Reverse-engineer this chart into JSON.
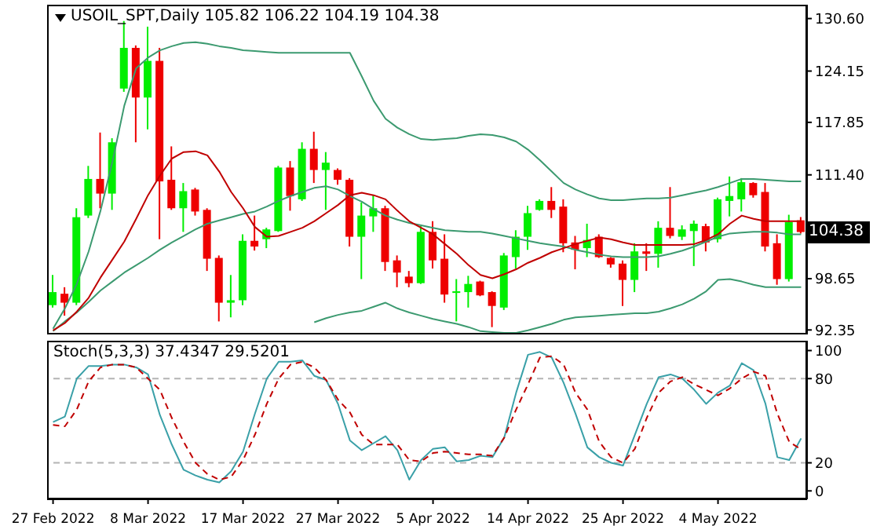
{
  "chart_data": [
    {
      "type": "candlestick",
      "title": "USOIL_SPT,Daily 105.82 106.22 104.19 104.38",
      "categories": [
        null,
        null,
        null,
        null,
        null,
        null,
        null,
        null,
        null,
        null,
        null,
        null,
        null,
        null,
        null,
        null,
        null,
        null,
        null,
        null,
        null,
        null,
        null,
        null,
        null,
        null,
        null,
        null,
        null,
        null,
        null,
        null,
        null,
        null,
        null,
        null,
        null,
        null,
        null,
        null,
        null,
        null,
        null,
        null,
        null,
        null,
        null,
        null,
        null,
        null,
        null,
        null,
        null,
        null,
        null,
        null,
        null,
        null,
        null,
        null,
        null,
        null,
        null,
        null
      ],
      "ohlc": [
        [
          95.4,
          99.1,
          95.1,
          97.0
        ],
        [
          96.8,
          97.6,
          94.1,
          95.7
        ],
        [
          95.7,
          107.3,
          95.4,
          106.2
        ],
        [
          106.4,
          112.5,
          106.1,
          110.9
        ],
        [
          110.9,
          116.6,
          107.3,
          109.1
        ],
        [
          109.1,
          115.9,
          107.1,
          115.4
        ],
        [
          122.0,
          130.3,
          121.6,
          127.0
        ],
        [
          127.0,
          127.3,
          115.4,
          120.9
        ],
        [
          120.9,
          129.6,
          117.0,
          125.4
        ],
        [
          125.4,
          127.0,
          103.5,
          110.6
        ],
        [
          110.8,
          114.9,
          107.1,
          107.3
        ],
        [
          107.3,
          110.4,
          104.4,
          109.4
        ],
        [
          109.6,
          109.8,
          106.4,
          106.9
        ],
        [
          107.1,
          107.3,
          99.6,
          101.1
        ],
        [
          101.2,
          101.5,
          93.4,
          95.7
        ],
        [
          95.7,
          99.1,
          93.9,
          96.0
        ],
        [
          96.0,
          104.1,
          95.4,
          103.3
        ],
        [
          103.3,
          106.4,
          102.1,
          102.6
        ],
        [
          103.5,
          104.9,
          102.4,
          104.7
        ],
        [
          104.5,
          112.5,
          104.4,
          112.3
        ],
        [
          112.3,
          113.1,
          107.0,
          108.8
        ],
        [
          108.4,
          115.4,
          108.2,
          114.6
        ],
        [
          114.6,
          116.7,
          110.4,
          112.0
        ],
        [
          112.0,
          114.2,
          107.1,
          112.9
        ],
        [
          112.0,
          112.2,
          110.2,
          110.8
        ],
        [
          110.8,
          111.0,
          102.6,
          103.8
        ],
        [
          103.8,
          108.0,
          98.6,
          106.4
        ],
        [
          106.3,
          108.9,
          104.4,
          107.3
        ],
        [
          107.3,
          107.6,
          99.6,
          100.7
        ],
        [
          100.9,
          101.5,
          97.6,
          99.4
        ],
        [
          98.9,
          99.6,
          97.6,
          98.1
        ],
        [
          98.1,
          105.1,
          98.0,
          104.4
        ],
        [
          104.4,
          105.7,
          99.9,
          100.9
        ],
        [
          101.1,
          104.1,
          95.7,
          96.7
        ],
        [
          96.9,
          98.6,
          93.4,
          97.1
        ],
        [
          97.0,
          99.0,
          95.1,
          98.0
        ],
        [
          98.3,
          98.4,
          96.5,
          96.6
        ],
        [
          97.0,
          97.1,
          92.7,
          95.3
        ],
        [
          95.1,
          101.8,
          94.8,
          101.5
        ],
        [
          101.3,
          104.6,
          99.9,
          103.8
        ],
        [
          103.8,
          107.6,
          102.2,
          106.7
        ],
        [
          107.1,
          108.4,
          107.0,
          108.2
        ],
        [
          108.2,
          109.9,
          106.1,
          107.1
        ],
        [
          107.5,
          108.4,
          101.9,
          103.0
        ],
        [
          103.1,
          103.9,
          99.8,
          102.2
        ],
        [
          102.4,
          105.4,
          101.3,
          103.4
        ],
        [
          103.8,
          104.1,
          101.2,
          101.3
        ],
        [
          101.2,
          101.3,
          100.0,
          100.4
        ],
        [
          100.5,
          100.9,
          95.3,
          98.5
        ],
        [
          98.5,
          103.0,
          97.0,
          102.0
        ],
        [
          102.0,
          103.0,
          99.6,
          101.7
        ],
        [
          101.7,
          105.7,
          100.0,
          104.9
        ],
        [
          104.9,
          109.9,
          103.6,
          103.9
        ],
        [
          103.8,
          105.2,
          103.4,
          104.7
        ],
        [
          104.5,
          105.8,
          100.2,
          105.4
        ],
        [
          105.1,
          105.4,
          102.0,
          103.1
        ],
        [
          103.5,
          108.6,
          103.1,
          108.4
        ],
        [
          108.2,
          111.2,
          106.3,
          108.8
        ],
        [
          108.4,
          111.0,
          106.9,
          110.5
        ],
        [
          110.4,
          110.5,
          108.6,
          108.9
        ],
        [
          109.3,
          110.4,
          102.0,
          102.6
        ],
        [
          103.0,
          104.1,
          97.9,
          98.6
        ],
        [
          98.6,
          106.5,
          98.3,
          105.6
        ],
        [
          105.82,
          106.22,
          104.19,
          104.38
        ]
      ],
      "colors": [
        "#00ee00",
        "#ee0000",
        "#00ee00",
        "#00ee00",
        "#ee0000",
        "#00ee00",
        "#00ee00",
        "#ee0000",
        "#00ee00",
        "#ee0000",
        "#ee0000",
        "#00ee00",
        "#ee0000",
        "#ee0000",
        "#ee0000",
        "#00ee00",
        "#00ee00",
        "#ee0000",
        "#00ee00",
        "#00ee00",
        "#ee0000",
        "#00ee00",
        "#ee0000",
        "#00ee00",
        "#ee0000",
        "#ee0000",
        "#00ee00",
        "#00ee00",
        "#ee0000",
        "#ee0000",
        "#ee0000",
        "#00ee00",
        "#ee0000",
        "#ee0000",
        "#00ee00",
        "#00ee00",
        "#ee0000",
        "#ee0000",
        "#00ee00",
        "#00ee00",
        "#00ee00",
        "#00ee00",
        "#ee0000",
        "#ee0000",
        "#ee0000",
        "#00ee00",
        "#ee0000",
        "#ee0000",
        "#ee0000",
        "#00ee00",
        "#ee0000",
        "#00ee00",
        "#ee0000",
        "#00ee00",
        "#00ee00",
        "#ee0000",
        "#00ee00",
        "#00ee00",
        "#00ee00",
        "#ee0000",
        "#ee0000",
        "#ee0000",
        "#00ee00",
        "#ee0000"
      ],
      "series": [
        {
          "type": "line",
          "color": "#3c9a70",
          "values": [
            92.5,
            95,
            98,
            102,
            107,
            113,
            119.9,
            124.5,
            125.8,
            126.7,
            127.2,
            127.6,
            127.7,
            127.5,
            127.2,
            127.0,
            126.7,
            126.6,
            126.5,
            126.4,
            126.4,
            126.4,
            126.4,
            126.4,
            126.4,
            126.4,
            123.5,
            120.5,
            118.3,
            117.2,
            116.4,
            115.8,
            115.7,
            115.8,
            115.9,
            116.2,
            116.4,
            116.3,
            116.0,
            115.5,
            114.5,
            113.2,
            111.8,
            110.4,
            109.6,
            109.0,
            108.5,
            108.3,
            108.3,
            108.4,
            108.5,
            108.5,
            108.6,
            108.9,
            109.2,
            109.5,
            109.9,
            110.4,
            110.9,
            110.9,
            110.8,
            110.7,
            110.6,
            110.6
          ]
        },
        {
          "type": "line",
          "color": "#3c9a70",
          "values": [
            92.2,
            93.4,
            94.5,
            95.8,
            97.2,
            98.3,
            99.4,
            100.3,
            101.2,
            102.2,
            103.1,
            103.9,
            104.7,
            105.4,
            105.8,
            106.2,
            106.6,
            106.9,
            107.5,
            108.2,
            108.8,
            109.3,
            109.8,
            110.0,
            109.6,
            108.8,
            108.1,
            107.2,
            106.4,
            105.9,
            105.5,
            105.2,
            104.9,
            104.6,
            104.5,
            104.4,
            104.4,
            104.2,
            103.9,
            103.6,
            103.3,
            103.0,
            102.8,
            102.6,
            102.2,
            101.9,
            101.6,
            101.4,
            101.3,
            101.3,
            101.3,
            101.4,
            101.7,
            102.1,
            102.6,
            103.2,
            103.8,
            104.2,
            104.3,
            104.4,
            104.4,
            104.3,
            104.1,
            104.1
          ]
        },
        {
          "type": "line",
          "color": "#3c9a70",
          "values": [
            null,
            null,
            null,
            null,
            null,
            null,
            null,
            null,
            null,
            null,
            null,
            null,
            null,
            null,
            null,
            null,
            null,
            null,
            null,
            null,
            null,
            null,
            93.3,
            93.8,
            94.2,
            94.5,
            94.7,
            95.2,
            95.7,
            95.0,
            94.5,
            94.1,
            93.7,
            93.4,
            93.1,
            92.7,
            92.2,
            92.1,
            92.0,
            92.0,
            92.3,
            92.7,
            93.1,
            93.6,
            93.9,
            94.0,
            94.1,
            94.2,
            94.3,
            94.4,
            94.4,
            94.6,
            95.0,
            95.5,
            96.2,
            97.1,
            98.5,
            98.6,
            98.3,
            97.9,
            97.6,
            97.6,
            97.6,
            97.6
          ]
        },
        {
          "type": "line",
          "color": "#c00000",
          "values": [
            92.3,
            93.2,
            94.6,
            96.3,
            98.8,
            101.0,
            103.2,
            106.0,
            108.9,
            111.3,
            113.4,
            114.2,
            114.3,
            113.8,
            111.8,
            109.3,
            107.3,
            105.0,
            103.8,
            103.9,
            104.4,
            104.9,
            105.7,
            106.7,
            107.7,
            108.9,
            109.2,
            108.9,
            108.4,
            107.0,
            105.7,
            104.9,
            104.1,
            102.9,
            101.7,
            100.3,
            99.1,
            98.7,
            99.2,
            99.8,
            100.6,
            101.2,
            101.9,
            102.4,
            102.9,
            103.3,
            103.7,
            103.5,
            103.1,
            102.8,
            102.8,
            102.8,
            102.8,
            102.8,
            102.9,
            103.4,
            104.1,
            105.4,
            106.4,
            106.0,
            105.7,
            105.7,
            105.7,
            105.7
          ]
        }
      ],
      "marker": "none",
      "ylim": [
        91.8,
        132.3
      ],
      "yticks": [
        {
          "value": 92.35,
          "label": "92.35"
        },
        {
          "value": 98.65,
          "label": "98.65"
        },
        {
          "value": 105.1,
          "label": null
        },
        {
          "value": 111.4,
          "label": "111.40"
        },
        {
          "value": 117.85,
          "label": "117.85"
        },
        {
          "value": 124.15,
          "label": "124.15"
        },
        {
          "value": 130.6,
          "label": "130.60"
        }
      ],
      "annotations": [
        {
          "text": "104.38",
          "y": 104.38
        }
      ],
      "tick_labels": "y"
    },
    {
      "type": "line",
      "title": "Stoch(5,3,3) 37.4347 29.5201",
      "categories": [
        "27 Feb 2022",
        null,
        null,
        null,
        null,
        null,
        null,
        null,
        "8 Mar 2022",
        null,
        null,
        null,
        null,
        null,
        null,
        null,
        "17 Mar 2022",
        null,
        null,
        null,
        null,
        null,
        null,
        null,
        "27 Mar 2022",
        null,
        null,
        null,
        null,
        null,
        null,
        null,
        "5 Apr 2022",
        null,
        null,
        null,
        null,
        null,
        null,
        null,
        "14 Apr 2022",
        null,
        null,
        null,
        null,
        null,
        null,
        null,
        "25 Apr 2022",
        null,
        null,
        null,
        null,
        null,
        null,
        null,
        "4 May 2022",
        null,
        null,
        null,
        null,
        null,
        null,
        null
      ],
      "series": [
        {
          "color": "#3aa0a8",
          "line_style": "solid",
          "values": [
            49,
            53,
            80,
            89,
            89,
            90,
            90,
            88,
            83,
            54,
            33,
            15,
            11,
            8,
            6,
            14,
            28,
            55,
            80,
            92,
            92,
            93,
            82,
            79,
            62,
            36,
            29,
            34,
            39,
            29,
            8,
            22,
            30,
            31,
            21,
            22,
            25,
            24,
            38,
            70,
            97,
            99,
            95,
            77,
            55,
            31,
            24,
            20,
            18,
            40,
            62,
            81,
            83,
            80,
            72,
            62,
            70,
            75,
            91,
            86,
            62,
            24,
            22,
            37.4347
          ]
        },
        {
          "color": "#c00000",
          "line_style": "dashed",
          "values": [
            47,
            46,
            58,
            78,
            88,
            90,
            90,
            88,
            80,
            72,
            52,
            35,
            20,
            12,
            8,
            10,
            22,
            40,
            62,
            80,
            90,
            92,
            88,
            79,
            65,
            56,
            40,
            33,
            33,
            33,
            22,
            21,
            27,
            28,
            27,
            26,
            26,
            25,
            38,
            58,
            76,
            95,
            96,
            90,
            70,
            58,
            35,
            24,
            20,
            30,
            52,
            70,
            78,
            81,
            76,
            72,
            68,
            73,
            80,
            85,
            82,
            55,
            35,
            29.5201
          ]
        }
      ],
      "marker": "none",
      "ylim": [
        -6,
        107
      ],
      "yticks": [
        0,
        20,
        80,
        100
      ],
      "ref_lines": [
        {
          "axis": "y",
          "value": 80,
          "color": "#b4b4b4",
          "line_style": "dashed"
        },
        {
          "axis": "y",
          "value": 20,
          "color": "#b4b4b4",
          "line_style": "dashed"
        }
      ]
    }
  ]
}
